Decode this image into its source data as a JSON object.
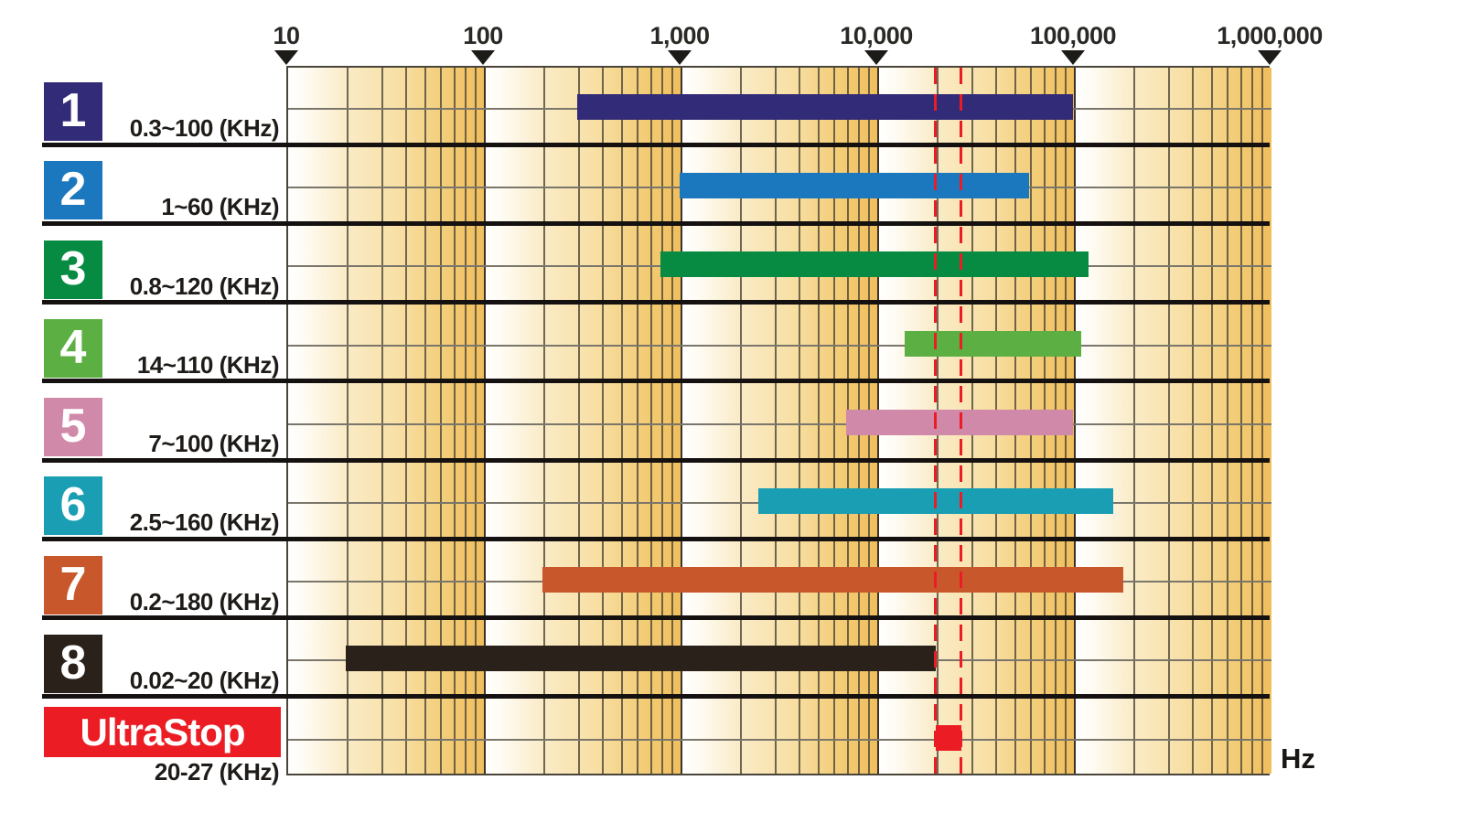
{
  "chart_data": {
    "type": "bar",
    "orientation": "horizontal-range",
    "scale": "log10",
    "axis": {
      "unit_label": "Hz",
      "min_hz": 10,
      "max_hz": 1000000,
      "ticks": [
        {
          "label": "10",
          "hz": 10
        },
        {
          "label": "100",
          "hz": 100
        },
        {
          "label": "1,000",
          "hz": 1000
        },
        {
          "label": "10,000",
          "hz": 10000
        },
        {
          "label": "100,000",
          "hz": 100000
        },
        {
          "label": "1,000,000",
          "hz": 1000000
        }
      ]
    },
    "rows": [
      {
        "number": "1",
        "range_label": "0.3~100 (KHz)",
        "from_khz": 0.3,
        "to_khz": 100,
        "color": "#322B77"
      },
      {
        "number": "2",
        "range_label": "1~60 (KHz)",
        "from_khz": 1,
        "to_khz": 60,
        "color": "#1B78BE"
      },
      {
        "number": "3",
        "range_label": "0.8~120 (KHz)",
        "from_khz": 0.8,
        "to_khz": 120,
        "color": "#078B43"
      },
      {
        "number": "4",
        "range_label": "14~110 (KHz)",
        "from_khz": 14,
        "to_khz": 110,
        "color": "#5CAF42"
      },
      {
        "number": "5",
        "range_label": "7~100 (KHz)",
        "from_khz": 7,
        "to_khz": 100,
        "color": "#D189A9"
      },
      {
        "number": "6",
        "range_label": "2.5~160 (KHz)",
        "from_khz": 2.5,
        "to_khz": 160,
        "color": "#1A9EB4"
      },
      {
        "number": "7",
        "range_label": "0.2~180 (KHz)",
        "from_khz": 0.2,
        "to_khz": 180,
        "color": "#C8582C"
      },
      {
        "number": "8",
        "range_label": "0.02~20 (KHz)",
        "from_khz": 0.02,
        "to_khz": 20,
        "color": "#2A211B"
      },
      {
        "number": "UltraStop",
        "range_label": "20-27 (KHz)",
        "from_khz": 20,
        "to_khz": 27,
        "color": "#EC1C24",
        "is_ultrastop": true
      }
    ],
    "highlight": {
      "from_khz": 20,
      "to_khz": 27,
      "line_style": "dashed",
      "color": "#EC1C24"
    }
  },
  "colors": {
    "shade_start": "#FFFFFF",
    "shade_mid": "#F8E0A6",
    "shade_end": "#F0BE5C",
    "minor_line": "#5C5444",
    "major_line": "#39342B",
    "band_midline": "#7B766C",
    "band_separator": "#141110",
    "tick_label": "#2B2926",
    "highlight_red": "#EC1C24"
  }
}
